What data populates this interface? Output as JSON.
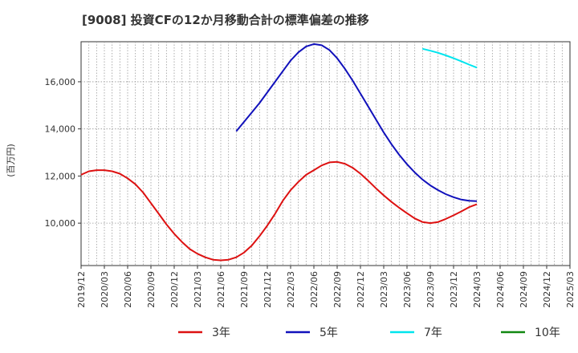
{
  "chart_data": {
    "type": "line",
    "title": "[9008]  投資CFの12か月移動合計の標準偏差の推移",
    "ylabel": "(百万円)",
    "xlabel": "",
    "ylim": [
      8200,
      17700
    ],
    "y_ticks": [
      10000,
      12000,
      14000,
      16000
    ],
    "y_tick_labels": [
      "10,000",
      "12,000",
      "14,000",
      "16,000"
    ],
    "x_tick_labels": [
      "2019/12",
      "2020/03",
      "2020/06",
      "2020/09",
      "2020/12",
      "2021/03",
      "2021/06",
      "2021/09",
      "2021/12",
      "2022/03",
      "2022/06",
      "2022/09",
      "2022/12",
      "2023/03",
      "2023/06",
      "2023/09",
      "2023/12",
      "2024/03",
      "2024/06",
      "2024/09",
      "2024/12",
      "2025/03"
    ],
    "grid": true,
    "legend_position": "bottom",
    "series": [
      {
        "name": "3年",
        "color": "#dd1111",
        "x": [
          "2019/12",
          "2020/01",
          "2020/02",
          "2020/03",
          "2020/04",
          "2020/05",
          "2020/06",
          "2020/07",
          "2020/08",
          "2020/09",
          "2020/10",
          "2020/11",
          "2020/12",
          "2021/01",
          "2021/02",
          "2021/03",
          "2021/04",
          "2021/05",
          "2021/06",
          "2021/07",
          "2021/08",
          "2021/09",
          "2021/10",
          "2021/11",
          "2021/12",
          "2022/01",
          "2022/02",
          "2022/03",
          "2022/04",
          "2022/05",
          "2022/06",
          "2022/07",
          "2022/08",
          "2022/09",
          "2022/10",
          "2022/11",
          "2022/12",
          "2023/01",
          "2023/02",
          "2023/03",
          "2023/04",
          "2023/05",
          "2023/06",
          "2023/07",
          "2023/08",
          "2023/09",
          "2023/10",
          "2023/11",
          "2023/12",
          "2024/01",
          "2024/02",
          "2024/03"
        ],
        "values": [
          12050,
          12200,
          12250,
          12250,
          12200,
          12100,
          11900,
          11650,
          11300,
          10850,
          10400,
          9950,
          9550,
          9200,
          8900,
          8700,
          8550,
          8450,
          8420,
          8450,
          8550,
          8750,
          9050,
          9450,
          9900,
          10400,
          10950,
          11400,
          11750,
          12050,
          12250,
          12450,
          12580,
          12600,
          12520,
          12350,
          12100,
          11800,
          11480,
          11180,
          10900,
          10650,
          10420,
          10200,
          10050,
          10000,
          10050,
          10180,
          10330,
          10500,
          10680,
          10800
        ]
      },
      {
        "name": "5年",
        "color": "#1111bb",
        "x": [
          "2021/08",
          "2021/09",
          "2021/10",
          "2021/11",
          "2021/12",
          "2022/01",
          "2022/02",
          "2022/03",
          "2022/04",
          "2022/05",
          "2022/06",
          "2022/07",
          "2022/08",
          "2022/09",
          "2022/10",
          "2022/11",
          "2022/12",
          "2023/01",
          "2023/02",
          "2023/03",
          "2023/04",
          "2023/05",
          "2023/06",
          "2023/07",
          "2023/08",
          "2023/09",
          "2023/10",
          "2023/11",
          "2023/12",
          "2024/01",
          "2024/02",
          "2024/03"
        ],
        "values": [
          13900,
          14300,
          14700,
          15100,
          15550,
          16000,
          16450,
          16900,
          17250,
          17500,
          17600,
          17550,
          17350,
          17000,
          16550,
          16050,
          15500,
          14950,
          14400,
          13850,
          13350,
          12900,
          12500,
          12150,
          11850,
          11600,
          11400,
          11230,
          11100,
          11000,
          10950,
          10930
        ]
      },
      {
        "name": "7年",
        "color": "#00e5ee",
        "x": [
          "2023/08",
          "2023/09",
          "2023/10",
          "2023/11",
          "2023/12",
          "2024/01",
          "2024/02",
          "2024/03"
        ],
        "values": [
          17400,
          17320,
          17230,
          17120,
          17000,
          16870,
          16730,
          16600
        ]
      },
      {
        "name": "10年",
        "color": "#118811",
        "x": [],
        "values": []
      }
    ]
  }
}
